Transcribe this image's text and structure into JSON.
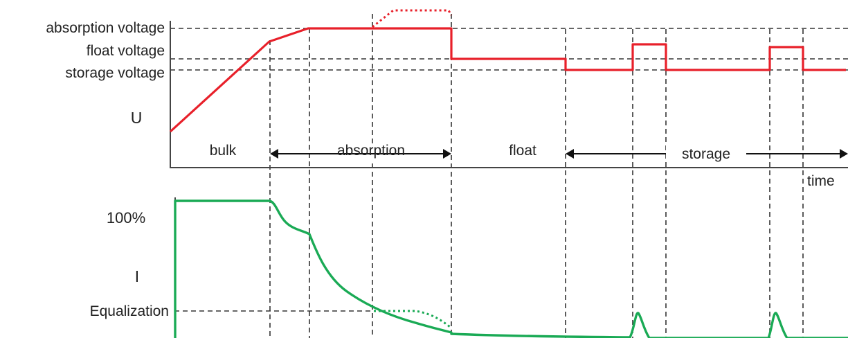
{
  "labels": {
    "absorption_voltage": "absorption voltage",
    "float_voltage": "float voltage",
    "storage_voltage": "storage voltage",
    "u_axis": "U",
    "i_axis": "I",
    "hundred_percent": "100%",
    "equalization": "Equalization",
    "time": "time"
  },
  "phases": {
    "bulk": "bulk",
    "absorption": "absorption",
    "float": "float",
    "storage": "storage"
  },
  "colors": {
    "voltage": "#e8202a",
    "current": "#1aaa55",
    "axis": "#444444"
  }
}
